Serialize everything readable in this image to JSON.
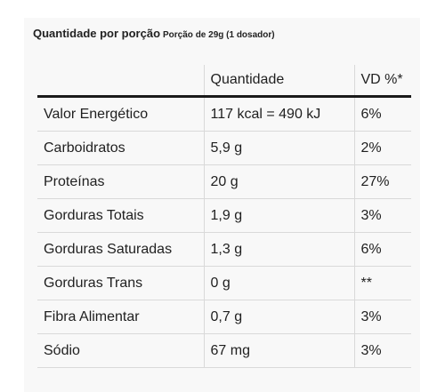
{
  "caption": {
    "title": "Quantidade por porção",
    "serving": "Porção de 29g (1 dosador)"
  },
  "table": {
    "headers": [
      "",
      "Quantidade",
      "VD %*"
    ],
    "rows": [
      [
        "Valor Energético",
        "117 kcal = 490 kJ",
        "6%"
      ],
      [
        "Carboidratos",
        "5,9 g",
        "2%"
      ],
      [
        "Proteínas",
        "20 g",
        "27%"
      ],
      [
        "Gorduras Totais",
        "1,9 g",
        "3%"
      ],
      [
        "Gorduras Saturadas",
        "1,3 g",
        "6%"
      ],
      [
        "Gorduras Trans",
        "0 g",
        "**"
      ],
      [
        "Fibra Alimentar",
        "0,7 g",
        "3%"
      ],
      [
        "Sódio",
        "67 mg",
        "3%"
      ]
    ]
  }
}
